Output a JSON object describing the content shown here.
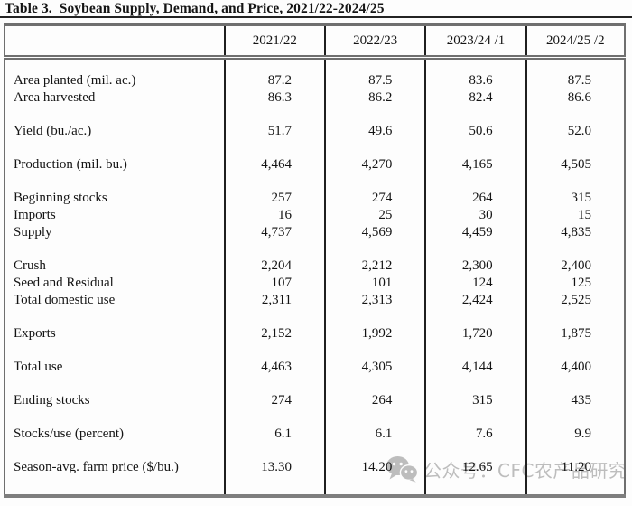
{
  "page": {
    "title": "Table 3.  Soybean Supply, Demand, and Price, 2021/22-2024/25"
  },
  "table": {
    "column_headers": [
      "2021/22",
      "2022/23",
      "2023/24 /1",
      "2024/25 /2"
    ],
    "rows": [
      {
        "label": "Area planted (mil. ac.)",
        "values": [
          "87.2",
          "87.5",
          "83.6",
          "87.5"
        ]
      },
      {
        "label": "Area harvested",
        "values": [
          "86.3",
          "86.2",
          "82.4",
          "86.6"
        ]
      },
      {
        "spacer": true
      },
      {
        "label": "Yield (bu./ac.)",
        "values": [
          "51.7",
          "49.6",
          "50.6",
          "52.0"
        ]
      },
      {
        "spacer": true
      },
      {
        "label": "Production (mil. bu.)",
        "values": [
          "4,464",
          "4,270",
          "4,165",
          "4,505"
        ]
      },
      {
        "spacer": true
      },
      {
        "label": "Beginning stocks",
        "values": [
          "257",
          "274",
          "264",
          "315"
        ]
      },
      {
        "label": "Imports",
        "values": [
          "16",
          "25",
          "30",
          "15"
        ]
      },
      {
        "label": "Supply",
        "values": [
          "4,737",
          "4,569",
          "4,459",
          "4,835"
        ]
      },
      {
        "spacer": true
      },
      {
        "label": "Crush",
        "values": [
          "2,204",
          "2,212",
          "2,300",
          "2,400"
        ]
      },
      {
        "label": "Seed and Residual",
        "values": [
          "107",
          "101",
          "124",
          "125"
        ]
      },
      {
        "label": "Total domestic use",
        "values": [
          "2,311",
          "2,313",
          "2,424",
          "2,525"
        ]
      },
      {
        "spacer": true
      },
      {
        "label": "Exports",
        "values": [
          "2,152",
          "1,992",
          "1,720",
          "1,875"
        ]
      },
      {
        "spacer": true
      },
      {
        "label": "Total use",
        "values": [
          "4,463",
          "4,305",
          "4,144",
          "4,400"
        ]
      },
      {
        "spacer": true
      },
      {
        "label": "Ending stocks",
        "values": [
          "274",
          "264",
          "315",
          "435"
        ]
      },
      {
        "spacer": true
      },
      {
        "label": "Stocks/use (percent)",
        "values": [
          "6.1",
          "6.1",
          "7.6",
          "9.9"
        ]
      },
      {
        "spacer": true
      },
      {
        "label": "Season-avg. farm price ($/bu.)",
        "values": [
          "13.30",
          "14.20",
          "12.65",
          "11.20"
        ]
      }
    ]
  },
  "watermark": {
    "icon": "wechat-icon",
    "text": "公众号：CFC农产品研究"
  },
  "colors": {
    "table_text": "#141414",
    "grid_line": "#1f1f1f",
    "outer_border": "#6f6f6f",
    "title_rule": "#232323",
    "watermark": "#bdbdbd"
  }
}
